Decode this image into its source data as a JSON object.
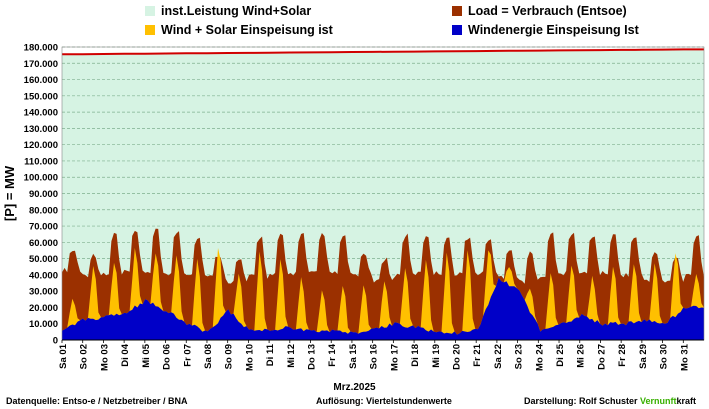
{
  "legend": [
    {
      "label": "inst.Leistung Wind+Solar",
      "color": "#d6f3e3"
    },
    {
      "label": "Load =  Verbrauch (Entsoe)",
      "color": "#9b3000"
    },
    {
      "label": "Wind + Solar Einspeisung ist",
      "color": "#ffc000"
    },
    {
      "label": "Windenergie Einspeisung Ist",
      "color": "#0000c8"
    }
  ],
  "footer": {
    "source": "Datenquelle:  Entso-e  / Netzbetreiber / BNA",
    "resolution": "Auflösung: Viertelstundenwerte",
    "author": "Darstellung:  Rolf Schuster",
    "brand_green": "Vernunft",
    "brand_black": "kraft"
  },
  "chart_data": {
    "type": "area",
    "xlabel": "Mrz.2025",
    "ylabel": "[P] = MW",
    "ylim": [
      0,
      180000
    ],
    "y_ticks": [
      "0",
      "10.000",
      "20.000",
      "30.000",
      "40.000",
      "50.000",
      "60.000",
      "70.000",
      "80.000",
      "90.000",
      "100.000",
      "110.000",
      "120.000",
      "130.000",
      "140.000",
      "150.000",
      "160.000",
      "170.000",
      "180.000"
    ],
    "categories": [
      "Sa 01",
      "So 02",
      "Mo 03",
      "Di 04",
      "Mi 05",
      "Do 06",
      "Fr 07",
      "Sa 08",
      "So 09",
      "Mo 10",
      "Di 11",
      "Mi 12",
      "Do 13",
      "Fr 14",
      "Sa 15",
      "So 16",
      "Mo 17",
      "Di 18",
      "Mi 19",
      "Do 20",
      "Fr 21",
      "Sa 22",
      "So 23",
      "Mo 24",
      "Di 25",
      "Mi 26",
      "Do 27",
      "Fr 28",
      "Sa 29",
      "So 30",
      "Mo 31"
    ],
    "grid": true,
    "series": [
      {
        "name": "inst.Leistung Wind+Solar",
        "color": "#d6f3e3",
        "line_color": "#d00000",
        "values": [
          175500,
          175600,
          175700,
          175800,
          175900,
          176000,
          176100,
          176200,
          176300,
          176400,
          176500,
          176600,
          176700,
          176800,
          176900,
          177000,
          177100,
          177200,
          177300,
          177400,
          177500,
          177600,
          177700,
          177800,
          177900,
          178000,
          178100,
          178200,
          178300,
          178400,
          178500
        ]
      },
      {
        "name": "Load =  Verbrauch (Entsoe)",
        "color": "#9b3000",
        "daily_peak": [
          55000,
          52000,
          65000,
          66000,
          67000,
          66000,
          63000,
          52000,
          49000,
          63000,
          64000,
          65000,
          65000,
          63000,
          53000,
          50000,
          64000,
          64000,
          63000,
          63000,
          62000,
          56000,
          53000,
          65000,
          65000,
          64000,
          64000,
          63000,
          53000,
          50000,
          64000
        ],
        "daily_min": [
          43000,
          40000,
          40000,
          42000,
          42000,
          41000,
          41000,
          39000,
          36000,
          39000,
          40000,
          41000,
          41000,
          41000,
          39000,
          36000,
          40000,
          41000,
          41000,
          41000,
          41000,
          39000,
          36000,
          40000,
          41000,
          41000,
          41000,
          40000,
          37000,
          36000,
          40000
        ]
      },
      {
        "name": "Wind + Solar Einspeisung ist",
        "color": "#ffc000",
        "daily_peak": [
          22000,
          45000,
          47000,
          52000,
          57000,
          57000,
          52000,
          52000,
          48000,
          55000,
          50000,
          40000,
          30000,
          35000,
          33000,
          35000,
          47000,
          52000,
          55000,
          55000,
          40000,
          50000,
          45000,
          40000,
          45000,
          42000,
          45000,
          47000,
          48000,
          50000,
          40000
        ]
      },
      {
        "name": "Windenergie Einspeisung Ist",
        "color": "#0000c8",
        "daily_mean": [
          6000,
          12000,
          14000,
          16000,
          24000,
          18000,
          10000,
          5000,
          18000,
          6000,
          6000,
          8000,
          5000,
          6000,
          4000,
          6000,
          10000,
          8000,
          5000,
          4000,
          6000,
          38000,
          30000,
          6000,
          10000,
          15000,
          10000,
          10000,
          12000,
          10000,
          20000
        ]
      }
    ]
  }
}
